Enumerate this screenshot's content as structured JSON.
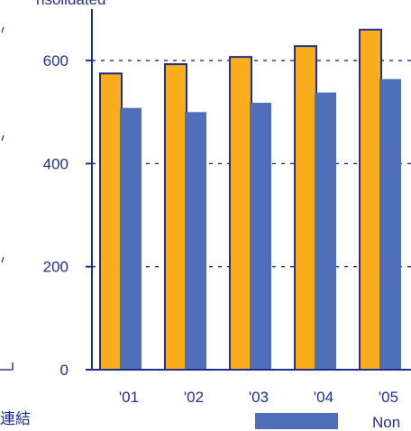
{
  "chart_data": {
    "type": "bar",
    "title": "",
    "title_partial": "nsolidated",
    "categories": [
      "'01",
      "'02",
      "'03",
      "'04",
      "'05"
    ],
    "series": [
      {
        "name": "",
        "color": "#f9ad1a",
        "values": [
          575,
          593,
          607,
          628,
          660
        ]
      },
      {
        "name": "Non",
        "color": "#4f6fba",
        "values": [
          508,
          500,
          518,
          538,
          564
        ]
      }
    ],
    "y_ticks": [
      "0",
      "200",
      "400",
      "600"
    ],
    "ylim": [
      0,
      700
    ],
    "grid": true,
    "legend_placement": "bottom",
    "left_label_partial": "連結",
    "colors": {
      "axis": "#1f2f8f",
      "bar_outline": "#1f2f8f",
      "tick_text": "#1f2f8f"
    }
  }
}
